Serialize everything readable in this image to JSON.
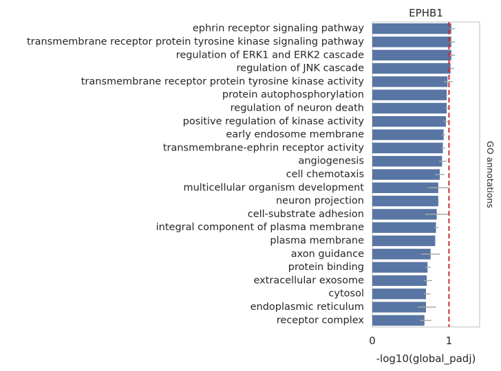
{
  "chart_data": {
    "type": "bar",
    "orientation": "horizontal",
    "title": "EPHB1",
    "xlabel": "-log10(global_padj)",
    "ylabel": "",
    "side_label": "GO annotations",
    "xlim": [
      0,
      1.4
    ],
    "xticks": [
      "0",
      "1"
    ],
    "xtick_values": [
      0,
      1
    ],
    "threshold": 1.0,
    "threshold_color": "#d62728",
    "bar_color": "#5875a4",
    "errorbar_color": "#a9a9a9",
    "grid": false,
    "categories": [
      "ephrin receptor signaling pathway",
      "transmembrane receptor protein tyrosine kinase signaling pathway",
      "regulation of ERK1 and ERK2 cascade",
      "regulation of JNK cascade",
      "transmembrane receptor protein tyrosine kinase activity",
      "protein autophosphorylation",
      "regulation of neuron death",
      "positive regulation of kinase activity",
      "early endosome membrane",
      "transmembrane-ephrin receptor activity",
      "angiogenesis",
      "cell chemotaxis",
      "multicellular organism development",
      "neuron projection",
      "cell-substrate adhesion",
      "integral component of plasma membrane",
      "plasma membrane",
      "axon guidance",
      "protein binding",
      "extracellular exosome",
      "cytosol",
      "endoplasmic reticulum",
      "receptor complex"
    ],
    "values": [
      1.03,
      1.03,
      1.03,
      1.02,
      0.98,
      0.97,
      0.97,
      0.96,
      0.93,
      0.92,
      0.91,
      0.88,
      0.86,
      0.86,
      0.84,
      0.83,
      0.82,
      0.76,
      0.72,
      0.71,
      0.7,
      0.7,
      0.68
    ],
    "errors": [
      [
        1.01,
        1.08
      ],
      [
        1.01,
        1.08
      ],
      [
        1.01,
        1.08
      ],
      [
        1.0,
        1.07
      ],
      [
        0.93,
        1.05
      ],
      [
        0.96,
        0.98
      ],
      [
        0.95,
        0.99
      ],
      [
        0.93,
        0.99
      ],
      [
        0.91,
        0.95
      ],
      [
        0.9,
        0.95
      ],
      [
        0.87,
        0.97
      ],
      [
        0.82,
        0.94
      ],
      [
        0.72,
        1.0
      ],
      [
        0.85,
        0.87
      ],
      [
        0.69,
        1.0
      ],
      [
        0.81,
        0.86
      ],
      [
        0.81,
        0.83
      ],
      [
        0.63,
        0.88
      ],
      [
        0.69,
        0.76
      ],
      [
        0.67,
        0.78
      ],
      [
        0.67,
        0.76
      ],
      [
        0.59,
        0.83
      ],
      [
        0.62,
        0.77
      ]
    ]
  }
}
